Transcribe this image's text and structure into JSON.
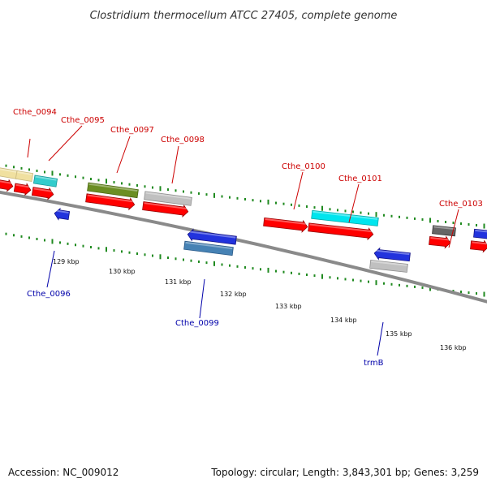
{
  "title": "Clostridium thermocellum ATCC 27405, complete genome",
  "footer": {
    "accession": "Accession: NC_009012",
    "summary": "Topology: circular; Length: 3,843,301 bp; Genes: 3,259"
  },
  "colors": {
    "label_forward": "#cc0000",
    "label_reverse": "#0000aa",
    "backbone": "#808080",
    "dots": "#228822",
    "cds": "#ff0000"
  },
  "genes": [
    {
      "id": "Cthe_0094",
      "name": "Cthe_0094",
      "strand": "+",
      "color": "#f0e0a0"
    },
    {
      "id": "Cthe_0095",
      "name": "Cthe_0095",
      "strand": "+",
      "color": "#33cccc"
    },
    {
      "id": "Cthe_0096",
      "name": "Cthe_0096",
      "strand": "-",
      "color": "#2233dd"
    },
    {
      "id": "Cthe_0097",
      "name": "Cthe_0097",
      "strand": "+",
      "color": "#6b8e23"
    },
    {
      "id": "Cthe_0098",
      "name": "Cthe_0098",
      "strand": "+",
      "color": "#c0c0c0"
    },
    {
      "id": "Cthe_0099",
      "name": "Cthe_0099",
      "strand": "-",
      "color": "#4682b4"
    },
    {
      "id": "Cthe_0100",
      "name": "Cthe_0100",
      "strand": "+",
      "color": "#ff0000"
    },
    {
      "id": "Cthe_0101",
      "name": "Cthe_0101",
      "strand": "+",
      "color": "#00e5ee"
    },
    {
      "id": "trmB",
      "name": "trmB",
      "strand": "-",
      "color": "#c0c0c0"
    },
    {
      "id": "Cthe_0103",
      "name": "Cthe_0103",
      "strand": "+",
      "color": "#666666"
    }
  ],
  "ticks": [
    "129 kbp",
    "130 kbp",
    "131 kbp",
    "132 kbp",
    "133 kbp",
    "134 kbp",
    "135 kbp",
    "136 kbp"
  ]
}
